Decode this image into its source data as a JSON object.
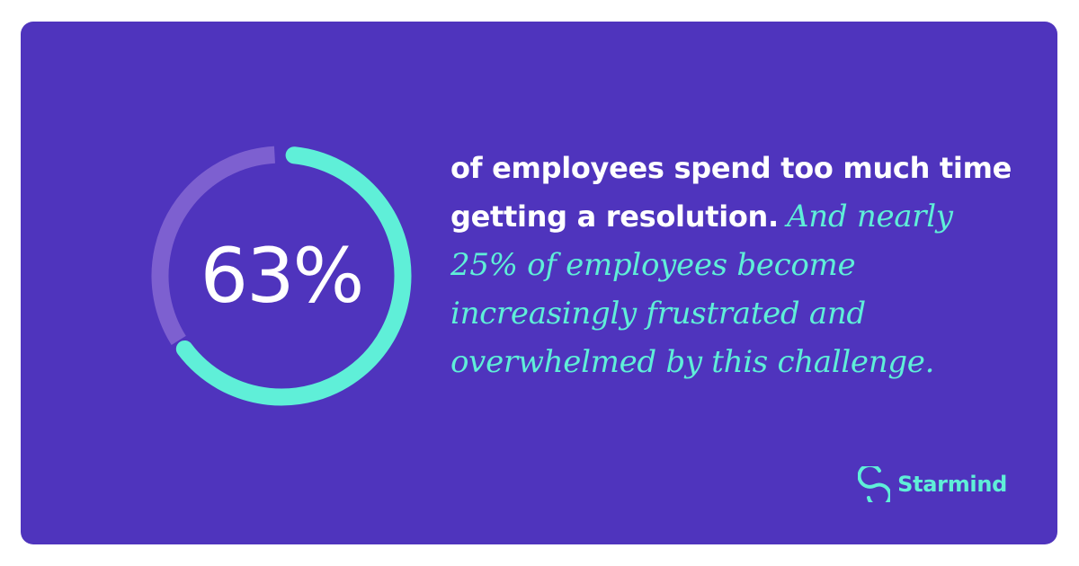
{
  "stat": {
    "value_label": "63%",
    "value_fraction": 0.63
  },
  "copy": {
    "lead_text": "of employees spend too much time getting a resolution.",
    "follow_text": "And nearly 25% of employees become increasingly frustrated and overwhelmed by this challenge."
  },
  "logo": {
    "text": "Starmind",
    "icon": "starmind-s-icon"
  },
  "colors": {
    "background": "#4f34bd",
    "accent": "#5fefd8",
    "ring_track": "#7d60d0",
    "text": "#ffffff"
  }
}
